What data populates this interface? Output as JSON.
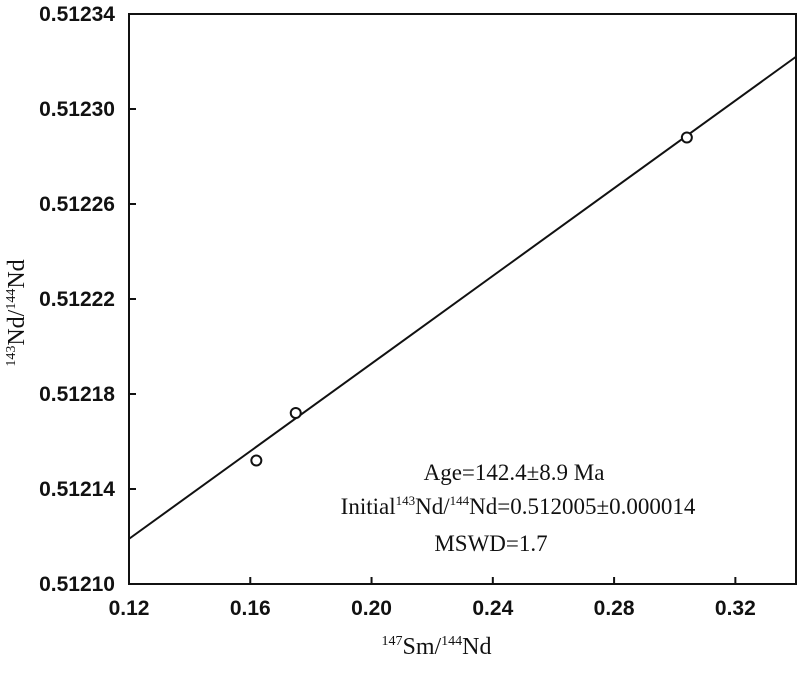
{
  "chart_data": {
    "type": "scatter",
    "x": [
      0.162,
      0.175,
      0.304
    ],
    "y": [
      0.512152,
      0.512172,
      0.512288
    ],
    "fit_line": {
      "x": [
        0.12,
        0.34
      ],
      "y": [
        0.512119,
        0.512322
      ]
    },
    "xlabel": {
      "sup1": "147",
      "base1": "Sm/",
      "sup2": "144",
      "base2": "Nd"
    },
    "ylabel": {
      "sup1": "143",
      "base1": "Nd/",
      "sup2": "144",
      "base2": "Nd"
    },
    "xlim": [
      0.12,
      0.34
    ],
    "ylim": [
      0.5121,
      0.51234
    ],
    "xticks": [
      0.12,
      0.16,
      0.2,
      0.24,
      0.28,
      0.32
    ],
    "xtick_labels": [
      "0.12",
      "0.16",
      "0.20",
      "0.24",
      "0.28",
      "0.32"
    ],
    "yticks": [
      0.5121,
      0.51214,
      0.51218,
      0.51222,
      0.51226,
      0.5123,
      0.51234
    ],
    "ytick_labels": [
      "0.51210",
      "0.51214",
      "0.51218",
      "0.51222",
      "0.51226",
      "0.51230",
      "0.51234"
    ],
    "annotations": {
      "age": "Age=142.4±8.9 Ma",
      "initial_prefix": "Initial",
      "initial_sup1": "143",
      "initial_mid": "Nd/",
      "initial_sup2": "144",
      "initial_rest": "Nd=0.512005±0.000014",
      "mswd": "MSWD=1.7"
    },
    "grid": false
  }
}
